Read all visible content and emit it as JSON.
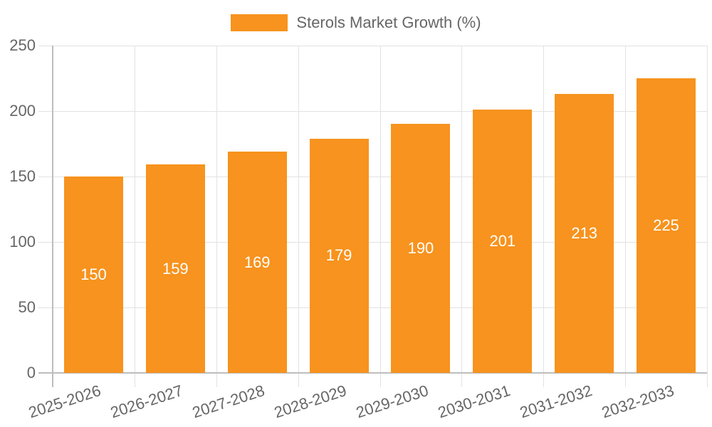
{
  "chart_data": {
    "type": "bar",
    "title": "",
    "legend": [
      {
        "label": "Sterols Market Growth (%)",
        "color": "#F7931E"
      }
    ],
    "legend_position": "top",
    "categories": [
      "2025-2026",
      "2026-2027",
      "2027-2028",
      "2028-2029",
      "2029-2030",
      "2030-2031",
      "2031-2032",
      "2032-2033"
    ],
    "series": [
      {
        "name": "Sterols Market Growth (%)",
        "color": "#F7931E",
        "values": [
          150,
          159,
          169,
          179,
          190,
          201,
          213,
          225
        ]
      }
    ],
    "data_labels": [
      "150",
      "159",
      "169",
      "179",
      "190",
      "201",
      "213",
      "225"
    ],
    "xlabel": "",
    "ylabel": "",
    "ylim": [
      0,
      250
    ],
    "yticks": [
      "0",
      "50",
      "100",
      "150",
      "200",
      "250"
    ],
    "grid": true
  },
  "legend": {
    "label": "Sterols Market Growth (%)",
    "color": "#F7931E"
  }
}
